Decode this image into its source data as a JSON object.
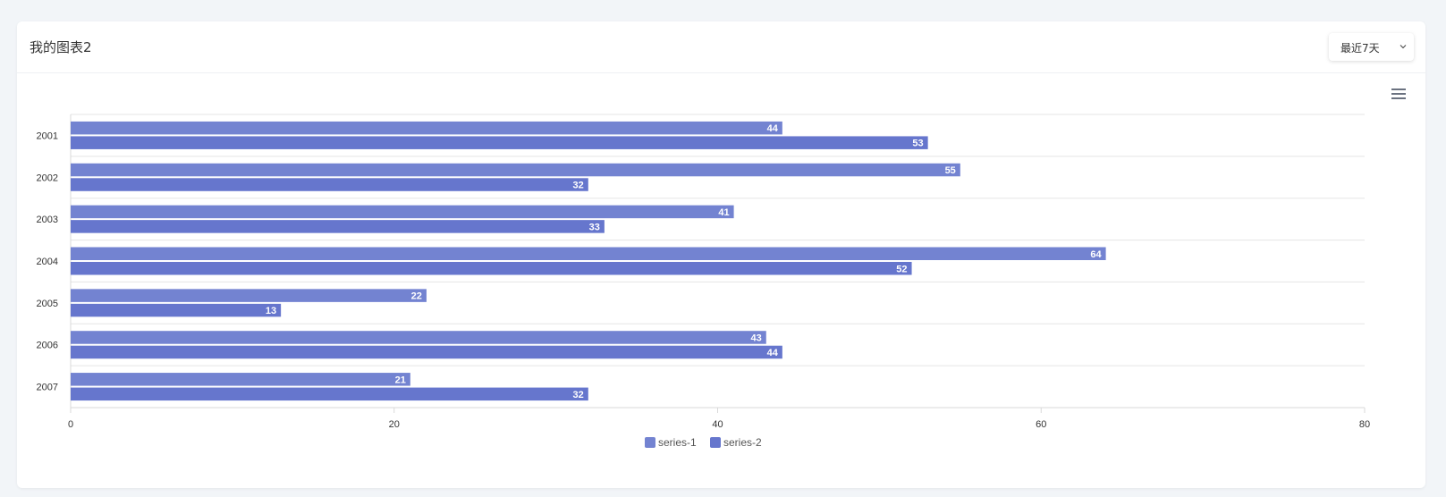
{
  "card": {
    "title": "我的图表2",
    "range_select": {
      "value": "最近7天"
    }
  },
  "toolbar": {
    "menu_icon": "hamburger-menu-icon"
  },
  "colors": {
    "series-1": "#7383d1",
    "series-2": "#6676cd",
    "axis": "#d9d9d9",
    "grid": "#e5e5e5"
  },
  "chart_data": {
    "type": "bar",
    "orientation": "horizontal",
    "categories": [
      "2001",
      "2002",
      "2003",
      "2004",
      "2005",
      "2006",
      "2007"
    ],
    "series": [
      {
        "name": "series-1",
        "values": [
          44,
          55,
          41,
          64,
          22,
          43,
          21
        ]
      },
      {
        "name": "series-2",
        "values": [
          53,
          32,
          33,
          52,
          13,
          44,
          32
        ]
      }
    ],
    "xlim": [
      0,
      80
    ],
    "xticks": [
      0,
      20,
      40,
      60,
      80
    ],
    "data_labels": true,
    "grid": true,
    "legend_position": "bottom-center",
    "title": "",
    "xlabel": "",
    "ylabel": ""
  }
}
